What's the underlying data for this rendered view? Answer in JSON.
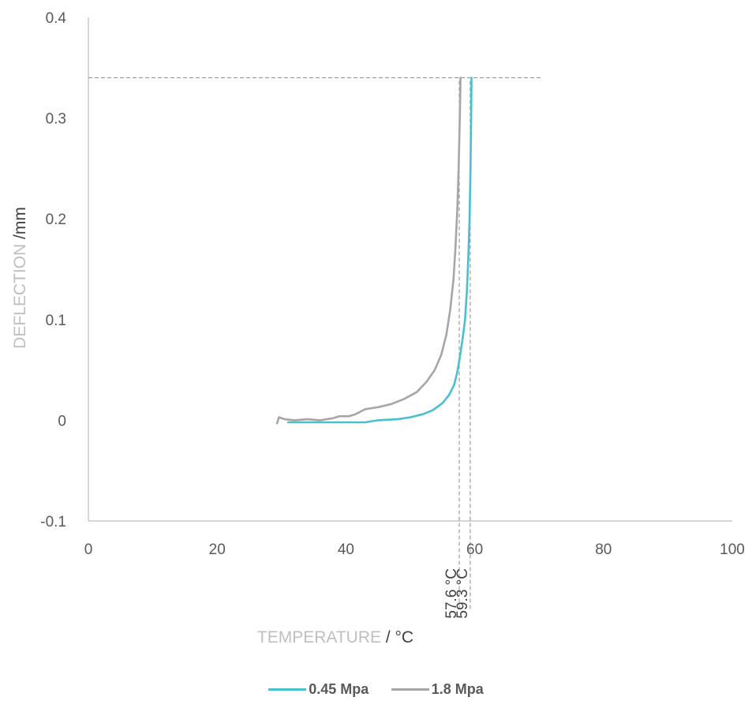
{
  "chart_data": {
    "type": "line",
    "xlabel": {
      "main": "TEMPERATURE",
      "unit": " / °C"
    },
    "ylabel": {
      "main": "DEFLECTION",
      "unit": " /mm"
    },
    "xlim": [
      0,
      100
    ],
    "ylim": [
      -0.1,
      0.4
    ],
    "x_ticks": [
      "0",
      "20",
      "40",
      "60",
      "80",
      "100"
    ],
    "y_ticks": [
      "-0.1",
      "0",
      "0.1",
      "0.2",
      "0.3",
      "0.4"
    ],
    "grid": false,
    "legend_position": "bottom",
    "series": [
      {
        "name": "0.45 Mpa",
        "color": "#4BBFCC",
        "points": [
          [
            31,
            -0.002
          ],
          [
            35,
            -0.002
          ],
          [
            40,
            -0.002
          ],
          [
            43,
            -0.002
          ],
          [
            45,
            0.0
          ],
          [
            48,
            0.001
          ],
          [
            50,
            0.003
          ],
          [
            52,
            0.006
          ],
          [
            53.5,
            0.01
          ],
          [
            55,
            0.017
          ],
          [
            56,
            0.025
          ],
          [
            56.8,
            0.035
          ],
          [
            57.3,
            0.048
          ],
          [
            57.7,
            0.063
          ],
          [
            58.1,
            0.08
          ],
          [
            58.5,
            0.1
          ],
          [
            58.8,
            0.13
          ],
          [
            59.0,
            0.16
          ],
          [
            59.2,
            0.2
          ],
          [
            59.35,
            0.25
          ],
          [
            59.45,
            0.3
          ],
          [
            59.5,
            0.34
          ]
        ]
      },
      {
        "name": "1.8 Mpa",
        "color": "#A6A6A6",
        "points": [
          [
            29.3,
            -0.003
          ],
          [
            29.6,
            0.003
          ],
          [
            30.5,
            0.001
          ],
          [
            32,
            0.0
          ],
          [
            34,
            0.001
          ],
          [
            36,
            0.0
          ],
          [
            38,
            0.002
          ],
          [
            39,
            0.004
          ],
          [
            40.5,
            0.004
          ],
          [
            41.5,
            0.006
          ],
          [
            43,
            0.011
          ],
          [
            45,
            0.013
          ],
          [
            47,
            0.016
          ],
          [
            49,
            0.021
          ],
          [
            51,
            0.028
          ],
          [
            52.5,
            0.038
          ],
          [
            53.8,
            0.05
          ],
          [
            54.8,
            0.065
          ],
          [
            55.6,
            0.085
          ],
          [
            56.2,
            0.11
          ],
          [
            56.7,
            0.14
          ],
          [
            57.0,
            0.17
          ],
          [
            57.3,
            0.21
          ],
          [
            57.5,
            0.25
          ],
          [
            57.65,
            0.29
          ],
          [
            57.75,
            0.32
          ],
          [
            57.8,
            0.34
          ]
        ]
      }
    ],
    "reference_lines": {
      "y": 0.34,
      "x": [
        57.6,
        59.3
      ],
      "color": "#8C8C8C"
    },
    "annotations": [
      {
        "label": "57.6 °C",
        "x": 57.6
      },
      {
        "label": "59.3 °C",
        "x": 59.3
      }
    ],
    "colors": {
      "axis": "#BFBFBF",
      "tick_text": "#595959",
      "title_light": "#BFBFBF",
      "title_dark": "#404040"
    }
  }
}
